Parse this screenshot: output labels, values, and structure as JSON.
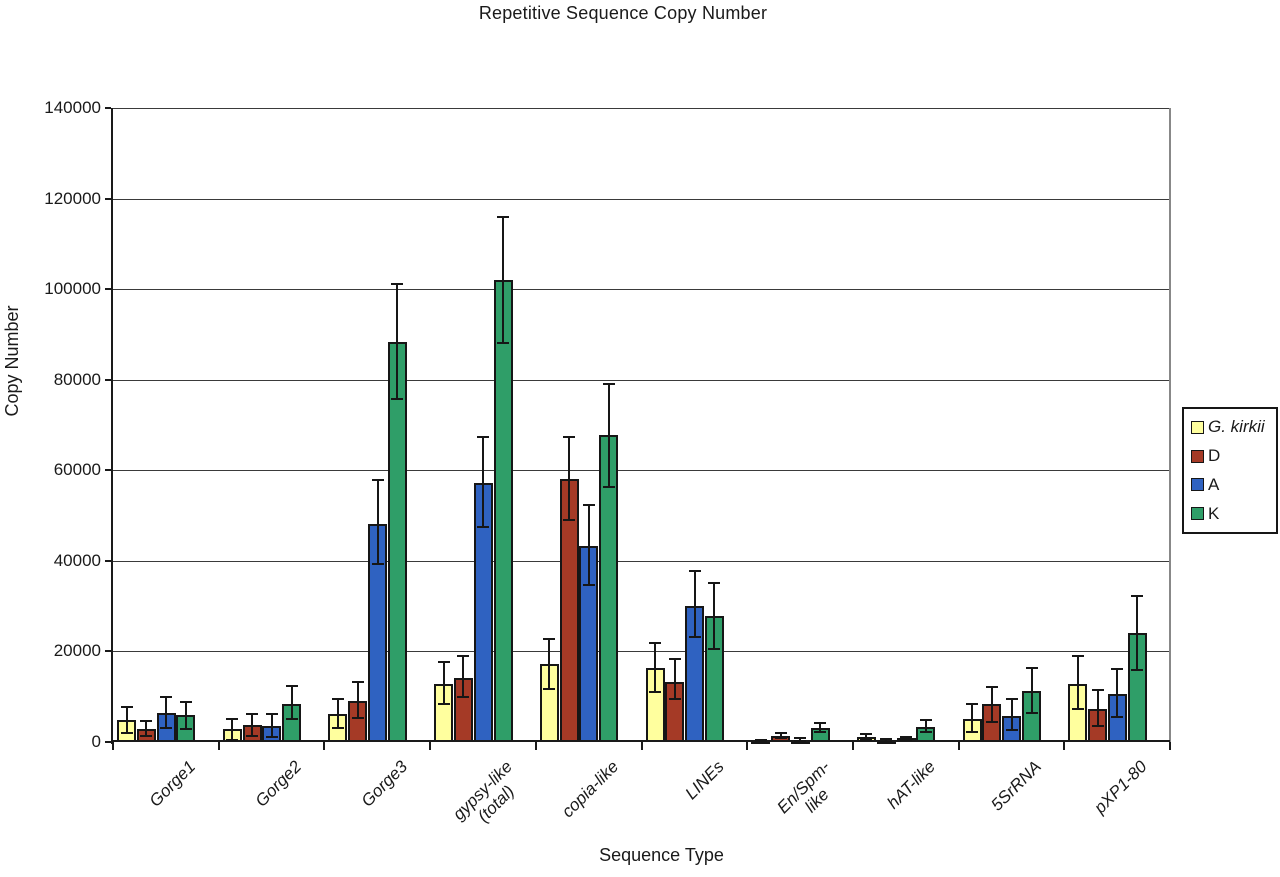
{
  "title": "Repetitive Sequence Copy Number",
  "axes": {
    "x_title": "Sequence Type",
    "y_title": "Copy Number"
  },
  "legend": {
    "items": [
      {
        "label": "G. kirkii",
        "italic": true,
        "color": "#FFFF9E"
      },
      {
        "label": "D",
        "italic": false,
        "color": "#A53A26"
      },
      {
        "label": "A",
        "italic": false,
        "color": "#2F62C1"
      },
      {
        "label": "K",
        "italic": false,
        "color": "#2F9E68"
      }
    ]
  },
  "chart_data": {
    "type": "bar",
    "title": "Repetitive Sequence Copy Number",
    "xlabel": "Sequence Type",
    "ylabel": "Copy Number",
    "ylim": [
      0,
      140000
    ],
    "ytick_step": 20000,
    "ytick_labels": [
      "0",
      "20000",
      "40000",
      "60000",
      "80000",
      "100000",
      "120000",
      "140000"
    ],
    "grid": true,
    "legend_position": "right",
    "error_bars": true,
    "categories": [
      "Gorge1",
      "Gorge2",
      "Gorge3",
      "gypsy-like\n(total)",
      "copia-like",
      "LINEs",
      "En/Spm-\nlike",
      "hAT-like",
      "5SrRNA",
      "pXP1-80"
    ],
    "series": [
      {
        "name": "G. kirkii",
        "italic": true,
        "color": "#FFFF9E",
        "values": [
          4800,
          2800,
          6200,
          12800,
          17300,
          16300,
          300,
          1100,
          5100,
          12800
        ],
        "error_plus": [
          3000,
          2300,
          3200,
          4900,
          5500,
          5600,
          200,
          600,
          3400,
          6300
        ],
        "error_minus": [
          2900,
          2300,
          3100,
          4500,
          5500,
          5300,
          200,
          600,
          2900,
          5600
        ]
      },
      {
        "name": "D",
        "italic": false,
        "color": "#A53A26",
        "values": [
          2900,
          3700,
          9000,
          14200,
          58000,
          13200,
          1300,
          400,
          8300,
          7200
        ],
        "error_plus": [
          1700,
          2400,
          4300,
          4900,
          9400,
          5100,
          600,
          300,
          3900,
          4200
        ],
        "error_minus": [
          1500,
          2300,
          3600,
          4300,
          9000,
          3800,
          500,
          300,
          3800,
          3700
        ]
      },
      {
        "name": "A",
        "italic": false,
        "color": "#2F62C1",
        "values": [
          6300,
          3600,
          48100,
          57300,
          43200,
          30000,
          500,
          800,
          5700,
          10700
        ],
        "error_plus": [
          3600,
          2600,
          9700,
          10100,
          9100,
          7700,
          300,
          400,
          3900,
          5400
        ],
        "error_minus": [
          3300,
          2500,
          8800,
          9900,
          8500,
          6800,
          300,
          400,
          3100,
          5100
        ]
      },
      {
        "name": "K",
        "italic": false,
        "color": "#2F9E68",
        "values": [
          5900,
          8400,
          88400,
          102000,
          67700,
          27800,
          3100,
          3400,
          11200,
          24000
        ],
        "error_plus": [
          2900,
          4000,
          12800,
          14000,
          11400,
          7300,
          1100,
          1400,
          5100,
          8300
        ],
        "error_minus": [
          3000,
          3300,
          12700,
          14000,
          11300,
          7200,
          1000,
          1300,
          4800,
          8200
        ]
      }
    ]
  }
}
